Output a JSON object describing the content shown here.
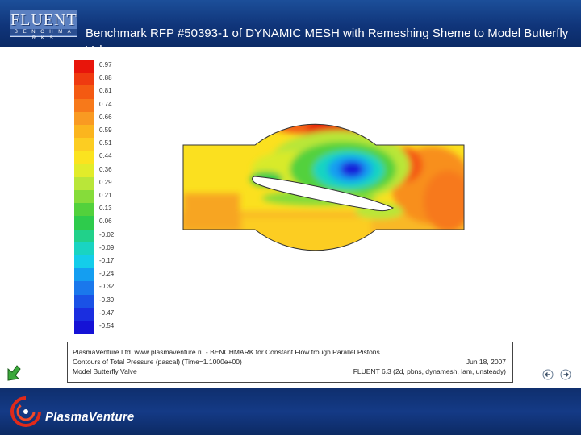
{
  "header": {
    "logo_text": "FLUENT",
    "logo_subtext": "B E N C H M A R K S",
    "title": "Benchmark  RFP #50393-1 of  DYNAMIC MESH with Remeshing  Sheme to Model Butterfly Valve"
  },
  "colorbar": [
    {
      "label": "0.97",
      "color": "#e8150b"
    },
    {
      "label": "0.88",
      "color": "#ef3a10"
    },
    {
      "label": "0.81",
      "color": "#f45a12"
    },
    {
      "label": "0.74",
      "color": "#f7791a"
    },
    {
      "label": "0.66",
      "color": "#f99a22"
    },
    {
      "label": "0.59",
      "color": "#fbb51e"
    },
    {
      "label": "0.51",
      "color": "#fccd22"
    },
    {
      "label": "0.44",
      "color": "#fbe31f"
    },
    {
      "label": "0.36",
      "color": "#e2ec2a"
    },
    {
      "label": "0.29",
      "color": "#b9e639"
    },
    {
      "label": "0.21",
      "color": "#86dc3a"
    },
    {
      "label": "0.13",
      "color": "#52d13c"
    },
    {
      "label": "0.06",
      "color": "#2ecb4c"
    },
    {
      "label": "-0.02",
      "color": "#21d18a"
    },
    {
      "label": "-0.09",
      "color": "#19d4c2"
    },
    {
      "label": "-0.17",
      "color": "#14cdea"
    },
    {
      "label": "-0.24",
      "color": "#149ef1"
    },
    {
      "label": "-0.32",
      "color": "#1a78ec"
    },
    {
      "label": "-0.39",
      "color": "#1a52e6"
    },
    {
      "label": "-0.47",
      "color": "#1a2ee0"
    },
    {
      "label": "-0.54",
      "color": "#1512d6"
    }
  ],
  "info": {
    "line1": "PlasmaVenture Ltd. www.plasmaventure.ru - BENCHMARK for Constant Flow trough Parallel Pistons",
    "line2": "Contours of Total Pressure (pascal)  (Time=1.1000e+00)",
    "line3": "Model Butterfly Valve",
    "date": "Jun 18, 2007",
    "version": "FLUENT 6.3 (2d, pbns, dynamesh, lam, unsteady)"
  },
  "footer": {
    "brand": "PlasmaVenture"
  },
  "colors": {
    "header_bg": "#143f88",
    "footer_bg": "#12357a",
    "logo_red": "#e02a1a"
  },
  "icons": {
    "nav": "green-arrow-icon",
    "prev": "previous-slide-icon",
    "next": "next-slide-icon",
    "brand": "plasma-swirl-icon"
  }
}
